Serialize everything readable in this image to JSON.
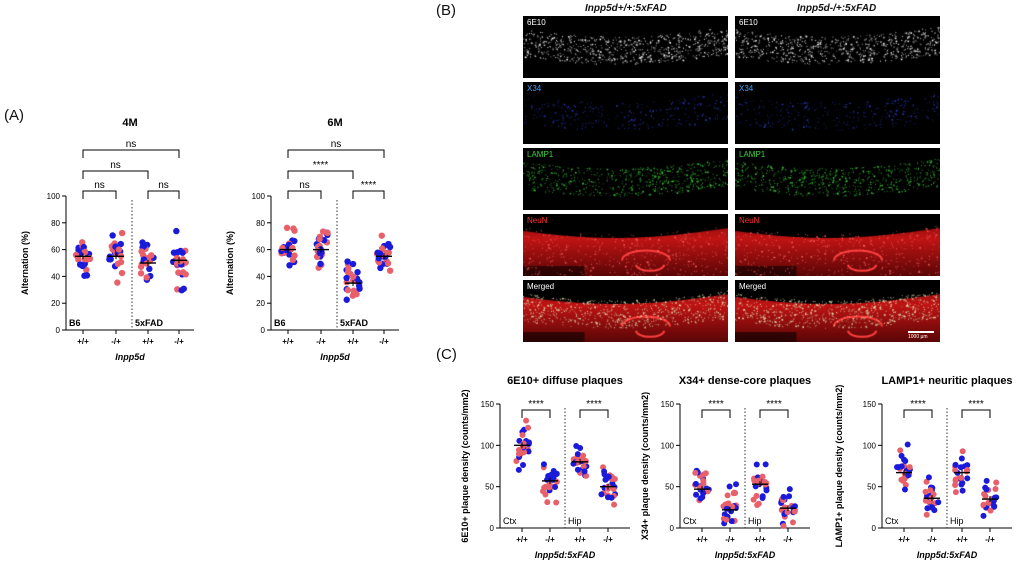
{
  "panels": {
    "A": "(A)",
    "B": "(B)",
    "C": "(C)"
  },
  "colors": {
    "blue": "#1a1adb",
    "pink": "#e8606a",
    "grey": "#444444"
  },
  "microscopy": {
    "col_headers": [
      "Inpp5d+/+:5xFAD",
      "Inpp5d-/+:5xFAD"
    ],
    "rows": [
      {
        "label": "6E10",
        "color": "#ffffff",
        "stain": "white"
      },
      {
        "label": "X34",
        "color": "#3da0ff",
        "stain": "blue"
      },
      {
        "label": "LAMP1",
        "color": "#39d439",
        "stain": "green"
      },
      {
        "label": "NeuN",
        "color": "#ff3030",
        "stain": "red"
      },
      {
        "label": "Merged",
        "color": "#ffffff",
        "stain": "merged"
      }
    ],
    "scale_bar": "1000 μm"
  },
  "chart_data": [
    {
      "type": "scatter",
      "title": "4M",
      "ylabel": "Alternation (%)",
      "ylim": [
        0,
        100
      ],
      "yticks": [
        0,
        20,
        40,
        60,
        80,
        100
      ],
      "xticklabels": [
        "+/+",
        "-/+",
        "+/+",
        "-/+"
      ],
      "xlabel": "Inpp5d",
      "groups": [
        "B6",
        "5xFAD"
      ],
      "means": [
        55,
        55,
        50,
        52
      ],
      "comparisons": [
        {
          "a": 0,
          "b": 1,
          "label": "ns",
          "level": 0
        },
        {
          "a": 2,
          "b": 3,
          "label": "ns",
          "level": 0
        },
        {
          "a": 0,
          "b": 2,
          "label": "ns",
          "level": 1
        },
        {
          "a": 0,
          "b": 3,
          "label": "ns",
          "level": 2
        }
      ]
    },
    {
      "type": "scatter",
      "title": "6M",
      "ylabel": "Alternation (%)",
      "ylim": [
        0,
        100
      ],
      "yticks": [
        0,
        20,
        40,
        60,
        80,
        100
      ],
      "xticklabels": [
        "+/+",
        "-/+",
        "+/+",
        "-/+"
      ],
      "xlabel": "Inpp5d",
      "groups": [
        "B6",
        "5xFAD"
      ],
      "means": [
        60,
        60,
        35,
        55
      ],
      "comparisons": [
        {
          "a": 0,
          "b": 1,
          "label": "ns",
          "level": 0
        },
        {
          "a": 2,
          "b": 3,
          "label": "****",
          "level": 0
        },
        {
          "a": 0,
          "b": 2,
          "label": "****",
          "level": 1
        },
        {
          "a": 0,
          "b": 3,
          "label": "ns",
          "level": 2
        }
      ]
    },
    {
      "type": "scatter",
      "title": "6E10+ diffuse plaques",
      "ylabel": "6E10+ plaque density (counts/mm2)",
      "ylim": [
        0,
        150
      ],
      "yticks": [
        0,
        50,
        100,
        150
      ],
      "xticklabels": [
        "+/+",
        "-/+",
        "+/+",
        "-/+"
      ],
      "xlabel": "Inpp5d:5xFAD",
      "groups": [
        "Ctx",
        "Hip"
      ],
      "means": [
        100,
        57,
        80,
        50
      ],
      "comparisons": [
        {
          "a": 0,
          "b": 1,
          "label": "****",
          "level": 0
        },
        {
          "a": 2,
          "b": 3,
          "label": "****",
          "level": 0
        }
      ]
    },
    {
      "type": "scatter",
      "title": "X34+ dense-core plaques",
      "ylabel": "X34+ plaque density (counts/mm2)",
      "ylim": [
        0,
        150
      ],
      "yticks": [
        0,
        50,
        100,
        150
      ],
      "xticklabels": [
        "+/+",
        "-/+",
        "+/+",
        "-/+"
      ],
      "xlabel": "Inpp5d:5xFAD",
      "groups": [
        "Ctx",
        "Hip"
      ],
      "means": [
        47,
        22,
        53,
        24
      ],
      "comparisons": [
        {
          "a": 0,
          "b": 1,
          "label": "****",
          "level": 0
        },
        {
          "a": 2,
          "b": 3,
          "label": "****",
          "level": 0
        }
      ]
    },
    {
      "type": "scatter",
      "title": "LAMP1+ neuritic plaques",
      "ylabel": "LAMP1+ plaque density (counts/mm2)",
      "ylim": [
        0,
        150
      ],
      "yticks": [
        0,
        50,
        100,
        150
      ],
      "xticklabels": [
        "+/+",
        "-/+",
        "+/+",
        "-/+"
      ],
      "xlabel": "Inpp5d:5xFAD",
      "groups": [
        "Ctx",
        "Hip"
      ],
      "means": [
        67,
        36,
        67,
        35
      ],
      "comparisons": [
        {
          "a": 0,
          "b": 1,
          "label": "****",
          "level": 0
        },
        {
          "a": 2,
          "b": 3,
          "label": "****",
          "level": 0
        }
      ]
    }
  ]
}
